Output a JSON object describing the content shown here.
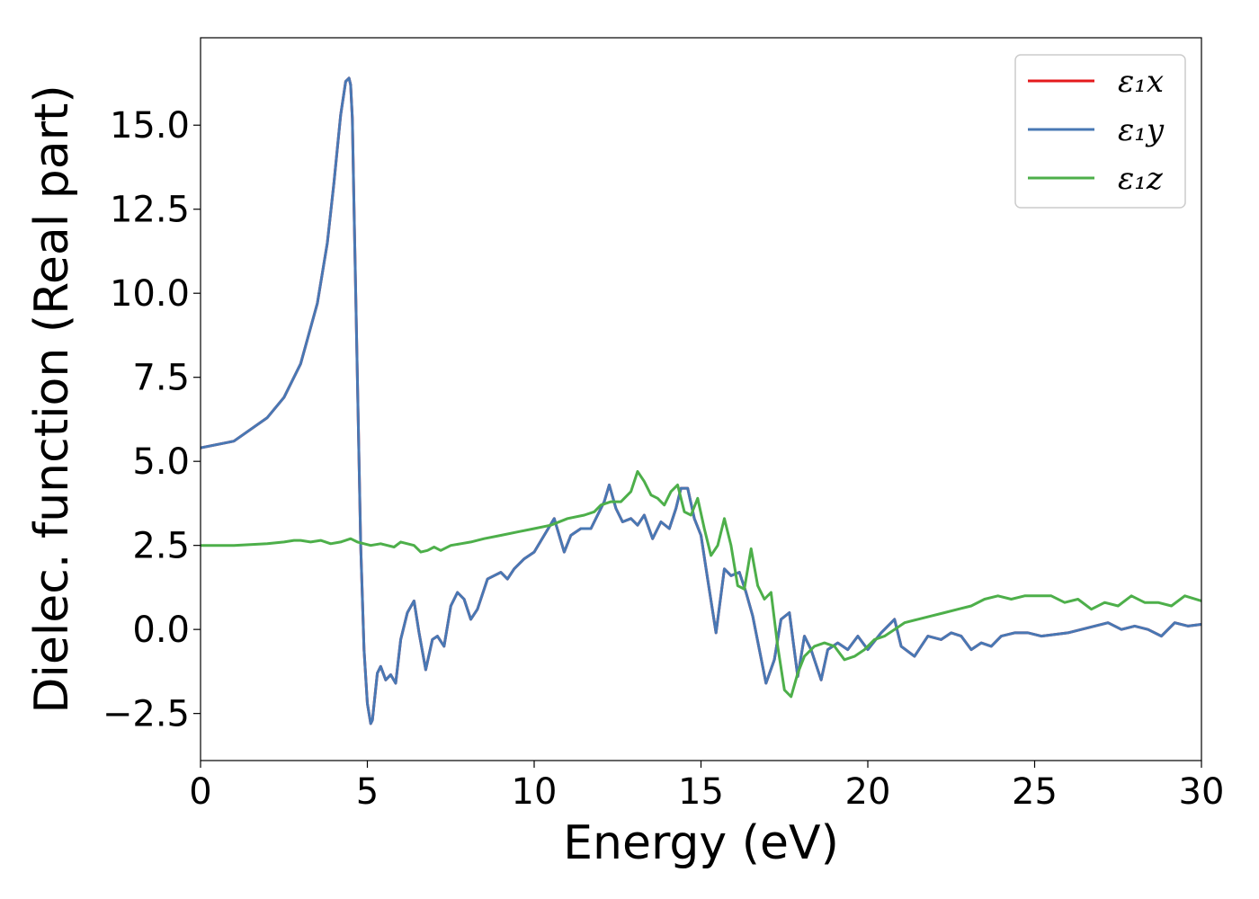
{
  "chart_data": {
    "type": "line",
    "title": "",
    "xlabel": "Energy (eV)",
    "ylabel": "Dielec. function (Real part)",
    "xlim": [
      0,
      30
    ],
    "ylim": [
      -3.9,
      17.6
    ],
    "xticks": [
      0,
      5,
      10,
      15,
      20,
      25,
      30
    ],
    "xtick_labels": [
      "0",
      "5",
      "10",
      "15",
      "20",
      "25",
      "30"
    ],
    "yticks": [
      -2.5,
      0.0,
      2.5,
      5.0,
      7.5,
      10.0,
      12.5,
      15.0
    ],
    "ytick_labels": [
      "−2.5",
      "0.0",
      "2.5",
      "5.0",
      "7.5",
      "10.0",
      "12.5",
      "15.0"
    ],
    "grid": false,
    "legend_position": "top-right",
    "series": [
      {
        "name": "ε₁x",
        "color": "#e41a1c",
        "x": [
          0,
          1,
          2,
          2.5,
          3,
          3.5,
          3.8,
          4.0,
          4.2,
          4.35,
          4.45,
          4.5,
          4.55,
          4.6,
          4.7,
          4.8,
          4.9,
          5.0,
          5.1,
          5.15,
          5.3,
          5.4,
          5.55,
          5.7,
          5.85,
          6.0,
          6.2,
          6.4,
          6.55,
          6.75,
          6.95,
          7.1,
          7.3,
          7.5,
          7.7,
          7.9,
          8.1,
          8.3,
          8.6,
          8.8,
          9.0,
          9.2,
          9.4,
          9.7,
          10.0,
          10.3,
          10.6,
          10.9,
          11.1,
          11.4,
          11.7,
          11.9,
          12.1,
          12.25,
          12.45,
          12.65,
          12.9,
          13.1,
          13.3,
          13.55,
          13.8,
          14.05,
          14.25,
          14.4,
          14.6,
          14.8,
          15.0,
          15.2,
          15.45,
          15.7,
          15.9,
          16.15,
          16.35,
          16.55,
          16.75,
          16.95,
          17.2,
          17.4,
          17.65,
          17.9,
          18.1,
          18.3,
          18.6,
          18.8,
          19.1,
          19.4,
          19.7,
          20.0,
          20.4,
          20.8,
          21.0,
          21.4,
          21.8,
          22.2,
          22.5,
          22.8,
          23.1,
          23.4,
          23.7,
          24.0,
          24.4,
          24.8,
          25.2,
          25.6,
          26.0,
          26.4,
          26.8,
          27.2,
          27.6,
          28.0,
          28.4,
          28.8,
          29.2,
          29.6,
          30.0
        ],
        "y": [
          5.4,
          5.6,
          6.3,
          6.9,
          7.9,
          9.7,
          11.5,
          13.3,
          15.3,
          16.3,
          16.4,
          16.2,
          15.2,
          12.5,
          7.5,
          2.5,
          -0.6,
          -2.2,
          -2.8,
          -2.7,
          -1.3,
          -1.1,
          -1.5,
          -1.35,
          -1.6,
          -0.3,
          0.5,
          0.85,
          -0.1,
          -1.2,
          -0.3,
          -0.2,
          -0.5,
          0.7,
          1.1,
          0.9,
          0.3,
          0.6,
          1.5,
          1.6,
          1.7,
          1.5,
          1.8,
          2.1,
          2.3,
          2.8,
          3.3,
          2.3,
          2.8,
          3.0,
          3.0,
          3.4,
          3.8,
          4.3,
          3.6,
          3.2,
          3.3,
          3.1,
          3.4,
          2.7,
          3.2,
          3.0,
          3.6,
          4.2,
          4.2,
          3.3,
          2.8,
          1.5,
          -0.1,
          1.8,
          1.6,
          1.7,
          1.1,
          0.4,
          -0.6,
          -1.6,
          -0.9,
          0.3,
          0.5,
          -1.4,
          -0.2,
          -0.6,
          -1.5,
          -0.6,
          -0.4,
          -0.6,
          -0.2,
          -0.6,
          -0.1,
          0.3,
          -0.5,
          -0.8,
          -0.2,
          -0.3,
          -0.1,
          -0.2,
          -0.6,
          -0.4,
          -0.5,
          -0.2,
          -0.1,
          -0.1,
          -0.2,
          -0.15,
          -0.1,
          0.0,
          0.1,
          0.2,
          0.0,
          0.1,
          0.0,
          -0.2,
          0.2,
          0.1,
          0.15
        ]
      },
      {
        "name": "ε₁y",
        "color": "#4878b4",
        "x": [
          0,
          1,
          2,
          2.5,
          3,
          3.5,
          3.8,
          4.0,
          4.2,
          4.35,
          4.45,
          4.5,
          4.55,
          4.6,
          4.7,
          4.8,
          4.9,
          5.0,
          5.1,
          5.15,
          5.3,
          5.4,
          5.55,
          5.7,
          5.85,
          6.0,
          6.2,
          6.4,
          6.55,
          6.75,
          6.95,
          7.1,
          7.3,
          7.5,
          7.7,
          7.9,
          8.1,
          8.3,
          8.6,
          8.8,
          9.0,
          9.2,
          9.4,
          9.7,
          10.0,
          10.3,
          10.6,
          10.9,
          11.1,
          11.4,
          11.7,
          11.9,
          12.1,
          12.25,
          12.45,
          12.65,
          12.9,
          13.1,
          13.3,
          13.55,
          13.8,
          14.05,
          14.25,
          14.4,
          14.6,
          14.8,
          15.0,
          15.2,
          15.45,
          15.7,
          15.9,
          16.15,
          16.35,
          16.55,
          16.75,
          16.95,
          17.2,
          17.4,
          17.65,
          17.9,
          18.1,
          18.3,
          18.6,
          18.8,
          19.1,
          19.4,
          19.7,
          20.0,
          20.4,
          20.8,
          21.0,
          21.4,
          21.8,
          22.2,
          22.5,
          22.8,
          23.1,
          23.4,
          23.7,
          24.0,
          24.4,
          24.8,
          25.2,
          25.6,
          26.0,
          26.4,
          26.8,
          27.2,
          27.6,
          28.0,
          28.4,
          28.8,
          29.2,
          29.6,
          30.0
        ],
        "y": [
          5.4,
          5.6,
          6.3,
          6.9,
          7.9,
          9.7,
          11.5,
          13.3,
          15.3,
          16.3,
          16.4,
          16.2,
          15.2,
          12.5,
          7.5,
          2.5,
          -0.6,
          -2.2,
          -2.8,
          -2.7,
          -1.3,
          -1.1,
          -1.5,
          -1.35,
          -1.6,
          -0.3,
          0.5,
          0.85,
          -0.1,
          -1.2,
          -0.3,
          -0.2,
          -0.5,
          0.7,
          1.1,
          0.9,
          0.3,
          0.6,
          1.5,
          1.6,
          1.7,
          1.5,
          1.8,
          2.1,
          2.3,
          2.8,
          3.3,
          2.3,
          2.8,
          3.0,
          3.0,
          3.4,
          3.8,
          4.3,
          3.6,
          3.2,
          3.3,
          3.1,
          3.4,
          2.7,
          3.2,
          3.0,
          3.6,
          4.2,
          4.2,
          3.3,
          2.8,
          1.5,
          -0.1,
          1.8,
          1.6,
          1.7,
          1.1,
          0.4,
          -0.6,
          -1.6,
          -0.9,
          0.3,
          0.5,
          -1.4,
          -0.2,
          -0.6,
          -1.5,
          -0.6,
          -0.4,
          -0.6,
          -0.2,
          -0.6,
          -0.1,
          0.3,
          -0.5,
          -0.8,
          -0.2,
          -0.3,
          -0.1,
          -0.2,
          -0.6,
          -0.4,
          -0.5,
          -0.2,
          -0.1,
          -0.1,
          -0.2,
          -0.15,
          -0.1,
          0.0,
          0.1,
          0.2,
          0.0,
          0.1,
          0.0,
          -0.2,
          0.2,
          0.1,
          0.15
        ]
      },
      {
        "name": "ε₁z",
        "color": "#4daf4a",
        "x": [
          0,
          1,
          2,
          2.5,
          2.8,
          3.0,
          3.3,
          3.6,
          3.9,
          4.2,
          4.5,
          4.7,
          4.9,
          5.1,
          5.4,
          5.6,
          5.8,
          6.0,
          6.2,
          6.4,
          6.6,
          6.8,
          7.0,
          7.2,
          7.5,
          7.8,
          8.1,
          8.5,
          9.0,
          9.5,
          10.0,
          10.5,
          11.0,
          11.5,
          11.8,
          12.0,
          12.3,
          12.6,
          12.9,
          13.1,
          13.3,
          13.5,
          13.7,
          13.9,
          14.1,
          14.3,
          14.5,
          14.7,
          14.9,
          15.1,
          15.3,
          15.5,
          15.7,
          15.9,
          16.1,
          16.3,
          16.5,
          16.7,
          16.9,
          17.1,
          17.3,
          17.5,
          17.7,
          17.9,
          18.1,
          18.4,
          18.7,
          19.0,
          19.3,
          19.6,
          19.9,
          20.2,
          20.5,
          20.8,
          21.1,
          21.5,
          21.9,
          22.3,
          22.7,
          23.1,
          23.5,
          23.9,
          24.3,
          24.7,
          25.1,
          25.5,
          25.9,
          26.3,
          26.7,
          27.1,
          27.5,
          27.9,
          28.3,
          28.7,
          29.1,
          29.5,
          30.0
        ],
        "y": [
          2.5,
          2.5,
          2.55,
          2.6,
          2.65,
          2.65,
          2.6,
          2.65,
          2.55,
          2.6,
          2.7,
          2.6,
          2.55,
          2.5,
          2.55,
          2.5,
          2.45,
          2.6,
          2.55,
          2.5,
          2.3,
          2.35,
          2.45,
          2.35,
          2.5,
          2.55,
          2.6,
          2.7,
          2.8,
          2.9,
          3.0,
          3.1,
          3.3,
          3.4,
          3.5,
          3.7,
          3.8,
          3.8,
          4.1,
          4.7,
          4.4,
          4.0,
          3.9,
          3.7,
          4.1,
          4.3,
          3.5,
          3.4,
          3.9,
          3.0,
          2.2,
          2.5,
          3.3,
          2.5,
          1.3,
          1.2,
          2.4,
          1.3,
          0.9,
          1.1,
          -0.5,
          -1.8,
          -2.0,
          -1.3,
          -0.8,
          -0.5,
          -0.4,
          -0.5,
          -0.9,
          -0.8,
          -0.6,
          -0.3,
          -0.2,
          0.0,
          0.2,
          0.3,
          0.4,
          0.5,
          0.6,
          0.7,
          0.9,
          1.0,
          0.9,
          1.0,
          1.0,
          1.0,
          0.8,
          0.9,
          0.6,
          0.8,
          0.7,
          1.0,
          0.8,
          0.8,
          0.7,
          1.0,
          0.85
        ]
      }
    ]
  }
}
